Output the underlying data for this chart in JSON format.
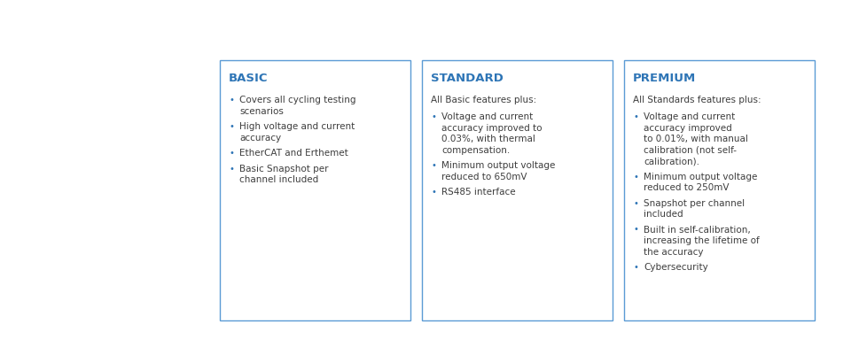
{
  "bg_color": "#ffffff",
  "box_bg": "#ffffff",
  "box_border": "#5b9bd5",
  "header_color": "#2e75b6",
  "text_color": "#3d3d3d",
  "bullet_color": "#2e75b6",
  "figsize": [
    9.6,
    3.92
  ],
  "dpi": 100,
  "panels": [
    {
      "title": "BASIC",
      "subtitle": null,
      "bullets": [
        [
          "Covers all cycling testing",
          "scenarios"
        ],
        [
          "High voltage and current",
          "accuracy"
        ],
        [
          "EtherCAT and Erthemet"
        ],
        [
          "Basic Snapshot per",
          "channel included"
        ]
      ]
    },
    {
      "title": "STANDARD",
      "subtitle": "All Basic features plus:",
      "bullets": [
        [
          "Voltage and current",
          "accuracy improved to",
          "0.03%, with thermal",
          "compensation."
        ],
        [
          "Minimum output voltage",
          "reduced to 650mV"
        ],
        [
          "RS485 interface"
        ]
      ]
    },
    {
      "title": "PREMIUM",
      "subtitle": "All Standards features plus:",
      "bullets": [
        [
          "Voltage and current",
          "accuracy improved",
          "to 0.01%, with manual",
          "calibration (not self-",
          "calibration)."
        ],
        [
          "Minimum output voltage",
          "reduced to 250mV"
        ],
        [
          "Snapshot per channel",
          "included"
        ],
        [
          "Built in self-calibration,",
          "increasing the lifetime of",
          "the accuracy"
        ],
        [
          "Cybersecurity"
        ]
      ]
    }
  ]
}
